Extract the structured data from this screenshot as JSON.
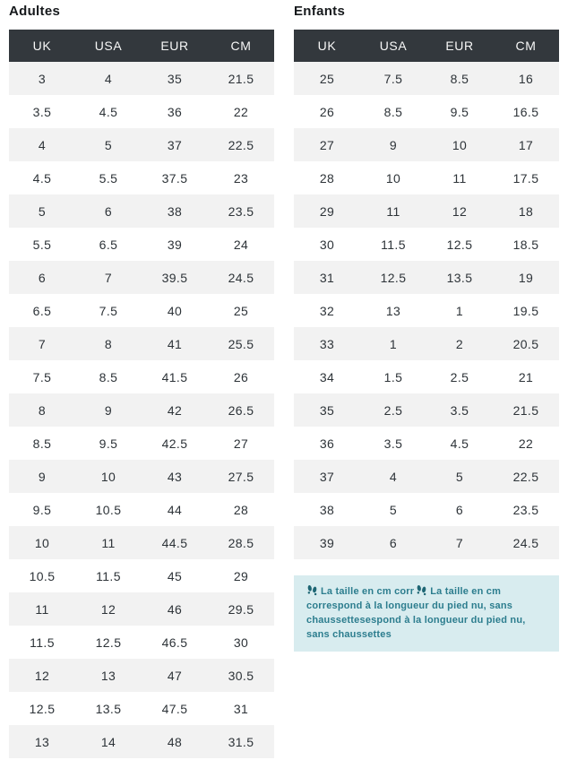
{
  "colors": {
    "header_bg": "#33383d",
    "header_text": "#f7f7f7",
    "row_alt_bg": "#f2f2f2",
    "row_bg": "#ffffff",
    "cell_text": "#2d3338",
    "title_text": "#16191c",
    "note_bg": "#d8ecef",
    "note_text": "#2c7d8e",
    "note_icon": "#1e6674"
  },
  "tables": [
    {
      "id": "adultes",
      "title": "Adultes",
      "columns": [
        "UK",
        "USA",
        "EUR",
        "CM"
      ],
      "rows": [
        [
          "3",
          "4",
          "35",
          "21.5"
        ],
        [
          "3.5",
          "4.5",
          "36",
          "22"
        ],
        [
          "4",
          "5",
          "37",
          "22.5"
        ],
        [
          "4.5",
          "5.5",
          "37.5",
          "23"
        ],
        [
          "5",
          "6",
          "38",
          "23.5"
        ],
        [
          "5.5",
          "6.5",
          "39",
          "24"
        ],
        [
          "6",
          "7",
          "39.5",
          "24.5"
        ],
        [
          "6.5",
          "7.5",
          "40",
          "25"
        ],
        [
          "7",
          "8",
          "41",
          "25.5"
        ],
        [
          "7.5",
          "8.5",
          "41.5",
          "26"
        ],
        [
          "8",
          "9",
          "42",
          "26.5"
        ],
        [
          "8.5",
          "9.5",
          "42.5",
          "27"
        ],
        [
          "9",
          "10",
          "43",
          "27.5"
        ],
        [
          "9.5",
          "10.5",
          "44",
          "28"
        ],
        [
          "10",
          "11",
          "44.5",
          "28.5"
        ],
        [
          "10.5",
          "11.5",
          "45",
          "29"
        ],
        [
          "11",
          "12",
          "46",
          "29.5"
        ],
        [
          "11.5",
          "12.5",
          "46.5",
          "30"
        ],
        [
          "12",
          "13",
          "47",
          "30.5"
        ],
        [
          "12.5",
          "13.5",
          "47.5",
          "31"
        ],
        [
          "13",
          "14",
          "48",
          "31.5"
        ]
      ]
    },
    {
      "id": "enfants",
      "title": "Enfants",
      "columns": [
        "UK",
        "USA",
        "EUR",
        "CM"
      ],
      "rows": [
        [
          "25",
          "7.5",
          "8.5",
          "16"
        ],
        [
          "26",
          "8.5",
          "9.5",
          "16.5"
        ],
        [
          "27",
          "9",
          "10",
          "17"
        ],
        [
          "28",
          "10",
          "11",
          "17.5"
        ],
        [
          "29",
          "11",
          "12",
          "18"
        ],
        [
          "30",
          "11.5",
          "12.5",
          "18.5"
        ],
        [
          "31",
          "12.5",
          "13.5",
          "19"
        ],
        [
          "32",
          "13",
          "1",
          "19.5"
        ],
        [
          "33",
          "1",
          "2",
          "20.5"
        ],
        [
          "34",
          "1.5",
          "2.5",
          "21"
        ],
        [
          "35",
          "2.5",
          "3.5",
          "21.5"
        ],
        [
          "36",
          "3.5",
          "4.5",
          "22"
        ],
        [
          "37",
          "4",
          "5",
          "22.5"
        ],
        [
          "38",
          "5",
          "6",
          "23.5"
        ],
        [
          "39",
          "6",
          "7",
          "24.5"
        ]
      ]
    }
  ],
  "note": {
    "icon": "footprints-icon",
    "text_part1": "La taille en cm corr",
    "text_part2": "La taille en cm correspond à la longueur du pied nu, sans chaussettesespond à la longueur du pied nu, sans chaussettes"
  }
}
